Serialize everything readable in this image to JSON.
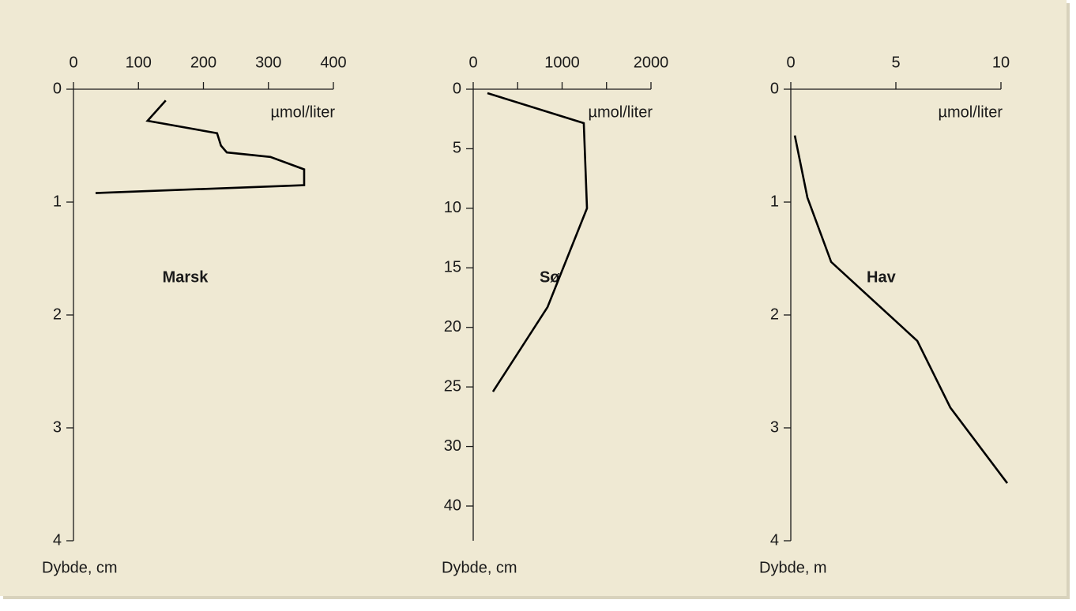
{
  "chart_data": [
    {
      "type": "line",
      "label": "Marsk",
      "xlabel": "µmol/liter",
      "ylabel": "Dybde, cm",
      "color": "#000000",
      "x": [
        142,
        114,
        221,
        227,
        236,
        303,
        355,
        355,
        34
      ],
      "y": [
        0.1,
        0.28,
        0.39,
        0.5,
        0.56,
        0.6,
        0.71,
        0.85,
        0.92
      ],
      "xlim": [
        0,
        400
      ],
      "xticks": [
        0,
        100,
        200,
        300,
        400
      ],
      "ylim": [
        0,
        4
      ],
      "yticks": [
        0,
        1,
        2,
        3,
        4
      ]
    },
    {
      "type": "line",
      "label": "Sø",
      "xlabel": "µmol/liter",
      "ylabel": "Dybde, cm",
      "color": "#000000",
      "x": [
        160,
        1244,
        1280,
        836,
        222
      ],
      "y": [
        0.33,
        2.85,
        10,
        18.3,
        25.4
      ],
      "xlim": [
        0,
        2000
      ],
      "xticks": [
        0,
        1000,
        2000
      ],
      "xminor_ticks": [
        500,
        1500
      ],
      "ylim": [
        0,
        40
      ],
      "yticks": [
        0,
        5,
        10,
        15,
        20,
        25,
        30,
        40
      ]
    },
    {
      "type": "line",
      "label": "Hav",
      "xlabel": "µmol/liter",
      "ylabel": "Dybde, m",
      "color": "#000000",
      "x": [
        0.19,
        0.79,
        1.92,
        6.02,
        7.59,
        10.3
      ],
      "y": [
        0.41,
        0.96,
        1.53,
        2.23,
        2.82,
        3.49
      ],
      "xlim": [
        0,
        10
      ],
      "xticks": [
        0,
        5,
        10
      ],
      "ylim": [
        0,
        4
      ],
      "yticks": [
        0,
        1,
        2,
        3,
        4
      ]
    }
  ]
}
